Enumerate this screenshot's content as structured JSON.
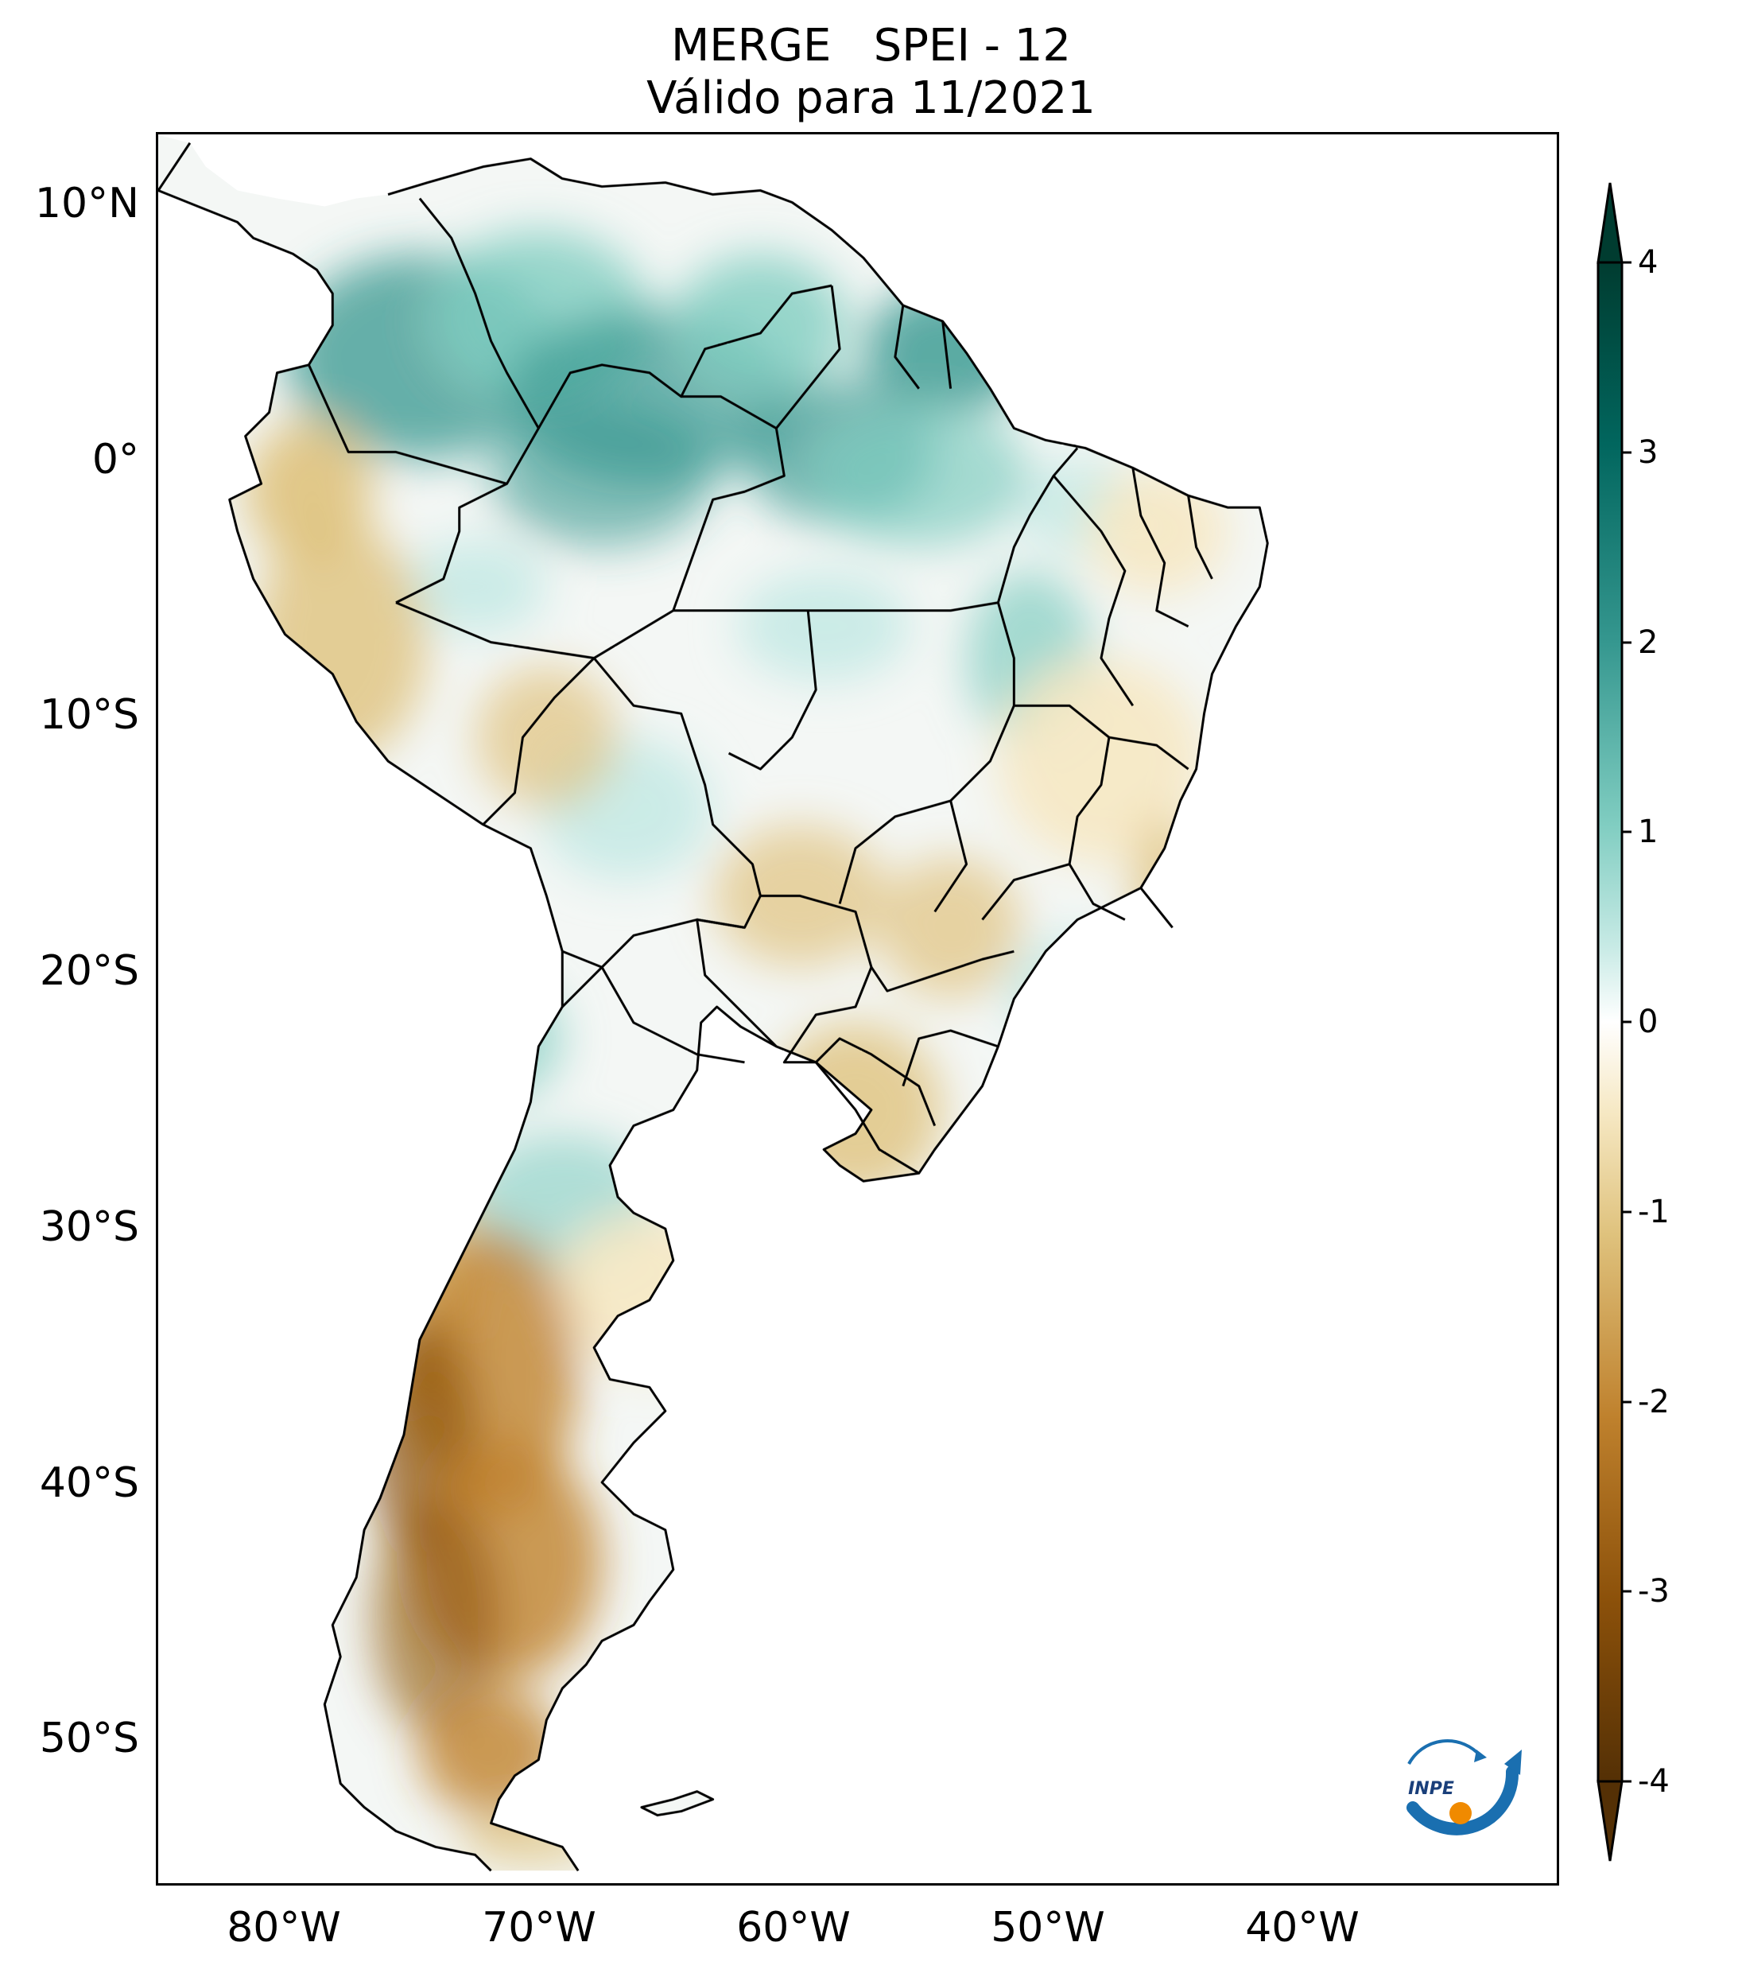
{
  "title": {
    "line1": "MERGE   SPEI - 12",
    "line2": "Válido para 11/2021"
  },
  "map": {
    "region": "South America",
    "lat_labels": [
      "10°N",
      "0°",
      "10°S",
      "20°S",
      "30°S",
      "40°S",
      "50°S"
    ],
    "lon_labels": [
      "80°W",
      "70°W",
      "60°W",
      "50°W",
      "40°W"
    ],
    "lat_range": [
      -56,
      12.5
    ],
    "lon_range": [
      -85,
      -30
    ],
    "borders_color": "#000000",
    "wet_regions": [
      "northern South America",
      "Amazon",
      "Colombia",
      "Venezuela",
      "Guianas",
      "central Argentina patch"
    ],
    "dry_regions": [
      "coastal Peru",
      "Patagonia",
      "southern Chile",
      "southern Brazil",
      "eastern Brazil"
    ]
  },
  "colorbar": {
    "min": -4,
    "max": 4,
    "ticks": [
      "4",
      "3",
      "2",
      "1",
      "0",
      "-1",
      "-2",
      "-3",
      "-4"
    ],
    "extend": "both",
    "colormap": "BrBG",
    "colors": [
      "#543005",
      "#8c510a",
      "#bf812d",
      "#dfc27d",
      "#f6e8c3",
      "#ffffff",
      "#c7eae5",
      "#80cdc1",
      "#35978f",
      "#01665e",
      "#003c30"
    ]
  },
  "logo": {
    "text": "INPE",
    "color": "#1a6fb0",
    "accent": "#f08a00"
  }
}
